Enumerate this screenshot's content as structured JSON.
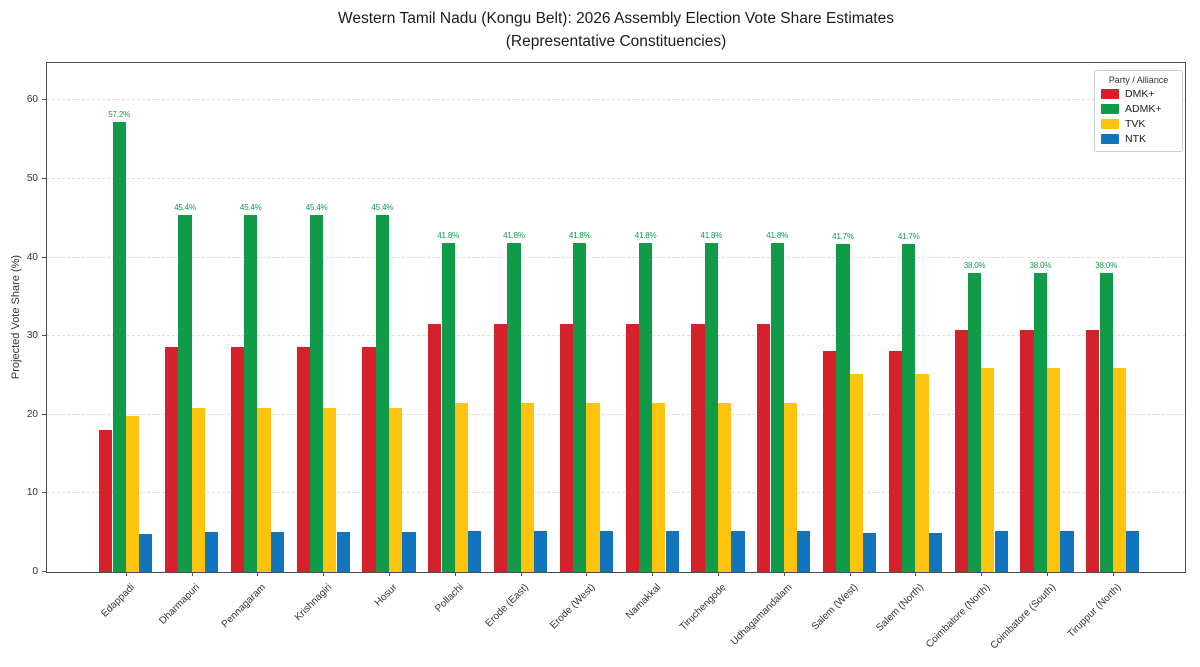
{
  "title": {
    "line1": "Western Tamil Nadu (Kongu Belt): 2026 Assembly Election Vote Share Estimates",
    "line2": "(Representative Constituencies)"
  },
  "y_axis": {
    "label": "Projected Vote Share (%)",
    "ticks": [
      0,
      10,
      20,
      30,
      40,
      50,
      60
    ]
  },
  "legend": {
    "title": "Party / Alliance"
  },
  "chart_data": {
    "type": "bar",
    "title": "Western Tamil Nadu (Kongu Belt): 2026 Assembly Election Vote Share Estimates (Representative Constituencies)",
    "xlabel": "",
    "ylabel": "Projected Vote Share (%)",
    "ylim": [
      0,
      65
    ],
    "grid": "horizontal-dashed",
    "legend_position": "upper-right",
    "legend_title": "Party / Alliance",
    "value_labels_on_series": "ADMK+",
    "categories": [
      "Edappadi",
      "Dharmapuri",
      "Pennagaram",
      "Krishnagiri",
      "Hosur",
      "Pollachi",
      "Erode (East)",
      "Erode (West)",
      "Namakkal",
      "Tiruchengode",
      "Udhagamandalam",
      "Salem (West)",
      "Salem (North)",
      "Coimbatore (North)",
      "Coimbatore (South)",
      "Tiruppur (North)"
    ],
    "series": [
      {
        "name": "DMK+",
        "color": "#d5212b",
        "values": [
          18.1,
          28.6,
          28.6,
          28.6,
          28.6,
          31.5,
          31.5,
          31.5,
          31.5,
          31.5,
          31.5,
          28.1,
          28.1,
          30.8,
          30.8,
          30.8
        ]
      },
      {
        "name": "ADMK+",
        "color": "#0f9b47",
        "values": [
          57.2,
          45.4,
          45.4,
          45.4,
          45.4,
          41.8,
          41.8,
          41.8,
          41.8,
          41.8,
          41.8,
          41.7,
          41.7,
          38.0,
          38.0,
          38.0
        ]
      },
      {
        "name": "TVK",
        "color": "#fcc40f",
        "values": [
          19.9,
          20.9,
          20.9,
          20.9,
          20.9,
          21.5,
          21.5,
          21.5,
          21.5,
          21.5,
          21.5,
          25.2,
          25.2,
          26.0,
          26.0,
          26.0
        ]
      },
      {
        "name": "NTK",
        "color": "#1174bc",
        "values": [
          4.8,
          5.1,
          5.1,
          5.1,
          5.1,
          5.2,
          5.2,
          5.2,
          5.2,
          5.2,
          5.2,
          5.0,
          5.0,
          5.2,
          5.2,
          5.2
        ]
      }
    ]
  }
}
